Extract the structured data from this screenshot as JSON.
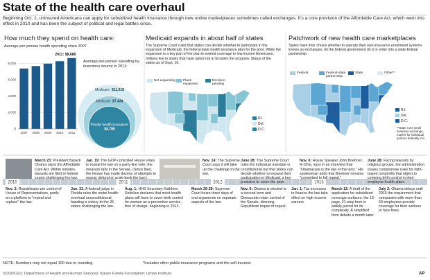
{
  "header": {
    "title": "State of the health care overhaul",
    "intro": "Beginning Oct. 1, uninsured Americans can apply for subsidized health insurance through new online marketplaces sometimes called exchanges. It's a core provision of the Affordable Care Act, which went into effect in 2010 and has been the subject of political and legal battles since."
  },
  "spending": {
    "heading": "How much they spend on health care:",
    "source_note": "Average per-person spending by insurance source in 2011:",
    "circles": [
      {
        "label": "Medicare:",
        "value": 11018,
        "value_label": "$11,018"
      },
      {
        "label": "Medicaid:",
        "value": 7434,
        "value_label": "$7,434"
      },
      {
        "label": "Private health insurance:",
        "value": 4786,
        "value_label": "$4,786"
      }
    ]
  },
  "chart_data": {
    "type": "bar",
    "subtitle": "Average per-person health spending since 2007",
    "categories": [
      "2007",
      "2008",
      "2009",
      "2010",
      "2011"
    ],
    "values": [
      7400,
      7700,
      8000,
      8300,
      8680
    ],
    "value_labels": [
      null,
      null,
      null,
      null,
      "2011: $8,680"
    ],
    "color": "#1d5a8c",
    "ylim": [
      0,
      9000
    ],
    "yticks": [
      0,
      {
        "value": 2000,
        "label": "2,000"
      },
      {
        "value": 4000,
        "label": "4,000"
      },
      {
        "value": 6000,
        "label": "6,000"
      },
      {
        "value": 8000,
        "label": "8,000"
      }
    ],
    "grid": true
  },
  "medicaid": {
    "heading": "Medicaid expands in about half of states",
    "text": "The Supreme Court ruled that states can decide whether to participate in the expansion of Medicaid, the federal-state health insurance plan for the poor. While the expansion is a key part of the plan to extend coverage to low-income Americans, millions live in states that have opted not to broaden the program. Status of the states as of Sept. 10:",
    "legend": [
      {
        "label": "Not expanding",
        "color": "#cfe6ee"
      },
      {
        "label": "Plans expansion",
        "color": "#86c5d4"
      },
      {
        "label": "Decision pending",
        "color": "#2c7d99"
      }
    ],
    "small_states": [
      "R.I.",
      "Del.",
      "D.C."
    ]
  },
  "marketplaces": {
    "heading": "Patchwork of new health care marketplaces",
    "text": "States have their choice whether to operate their own insurance enrollment systems known as exchanges, let the federal government do it or enter into a state-federal partnership:",
    "legend": [
      {
        "label": "Federal",
        "color": "#a9cfe6"
      },
      {
        "label": "Federal-state partnership",
        "color": "#5ba6d2"
      },
      {
        "label": "State",
        "color": "#1e5e9d"
      },
      {
        "label": "Other**",
        "color": "#dde9f1"
      }
    ],
    "small_states": [
      "R.I.",
      "Del.",
      "D.C."
    ],
    "note": "**State runs small business exchange, market for individual policies federally run"
  },
  "timeline": {
    "years": [
      "2010",
      "2011",
      "2012",
      "2013"
    ],
    "top_events": [
      {
        "date": "March 23:",
        "text": "President Barack Obama signs the Affordable Care Act. Within minutes, lawsuits are filed in federal courts challenging the law."
      },
      {
        "date": "Jan. 19:",
        "text": "The GOP-controlled House votes to repeal the law on a party-line vote; the measure fails in the Senate. (Since then, the House has made dozens of attempts to repeal, defund or scale back the law.)"
      },
      {
        "date": "Nov. 14:",
        "text": "The Supreme Court says it will take up the challenge to the law."
      },
      {
        "date": "June 28:",
        "text": "The Supreme Court rules the individual mandate is constitutional but that states can decide whether to expand their participation in Medicaid, a key provision to cover the poor."
      },
      {
        "date": "Nov. 6:",
        "text": "House Speaker John Boehner, R-Ohio, says in an interview that \"Obamacare is the law of the land.\" His spokesman adds that Boehner remains \"committed to full repeal.\""
      },
      {
        "date": "June 28:",
        "text": "Facing lawsuits by religious groups, the administration issues compromise rules for faith-based nonprofits that object to covering birth control in their employee health plans."
      }
    ],
    "bottom_events": [
      {
        "date": "Nov. 2:",
        "text": "Republicans win control of House of Representatives, partly on a platform to \"repeal and replace\" the law."
      },
      {
        "date": "Jan. 31:",
        "text": "A federal judge in Florida rules the entire health overhaul unconstitutional, handing a victory to the 26 states challenging the law."
      },
      {
        "date": "Aug. 1:",
        "text": "HHS Secretary Kathleen Sebelius declares that most health plans will have to cover birth control for women as a preventive service, free of charge, beginning in 2013."
      },
      {
        "date": "March 26-28:",
        "text": "Supreme Court hears three days of oral arguments on separate aspects of the law."
      },
      {
        "date": "Nov. 6:",
        "text": "Obama is elected to a second term and Democrats retain control of the Senate, dimming Republican hopes of repeal."
      },
      {
        "date": "Jan. 1:",
        "text": "Tax increases to finance the law take effect on high-income earners."
      },
      {
        "date": "March 12:",
        "text": "A draft of the application for subsidized coverage surfaces; the 15-page, 21-step form is widely jeered for its complexity. A simplified form debuts a month later."
      },
      {
        "date": "July 2:",
        "text": "Obama delays until 2015 the requirement that companies with more than 50 employees provide coverage for their workers or face fines."
      }
    ]
  },
  "footer": {
    "note": "NOTE: Numbers may not equal 100 due to rounding.",
    "footnote": "*Includes other public insurance programs and the self-insured",
    "sources": "SOURCES: Department of Health and Human Services; Kaiser Family Foundation; Urban Institute",
    "credit": "AP"
  }
}
